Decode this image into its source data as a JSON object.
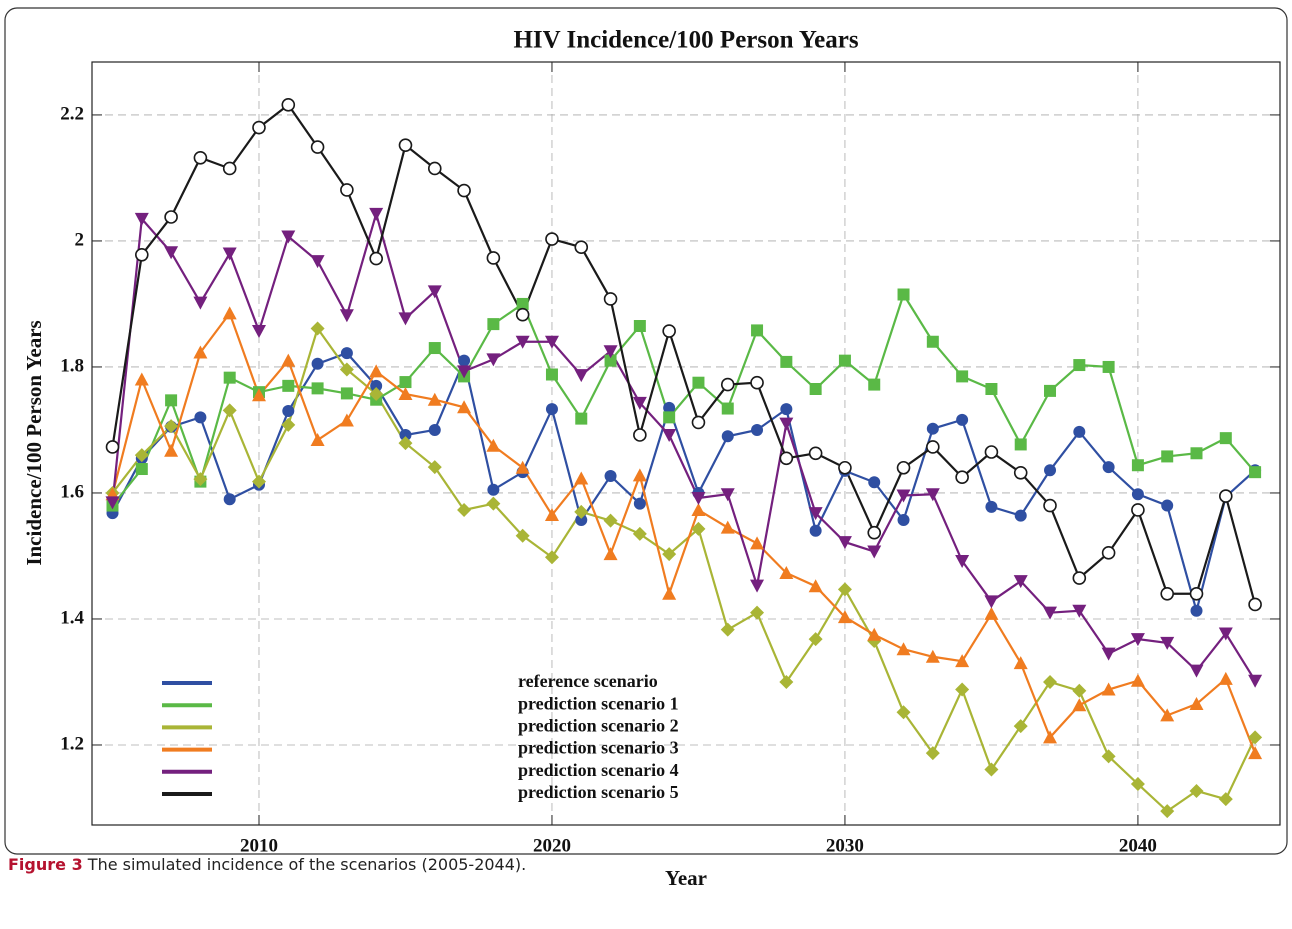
{
  "chart_data": {
    "type": "line",
    "title": "HIV Incidence/100 Person Years",
    "xlabel": "Year",
    "ylabel": "Incidence/100 Person Years",
    "x": [
      2005,
      2006,
      2007,
      2008,
      2009,
      2010,
      2011,
      2012,
      2013,
      2014,
      2015,
      2016,
      2017,
      2018,
      2019,
      2020,
      2021,
      2022,
      2023,
      2024,
      2025,
      2026,
      2027,
      2028,
      2029,
      2030,
      2031,
      2032,
      2033,
      2034,
      2035,
      2036,
      2037,
      2038,
      2039,
      2040,
      2041,
      2042,
      2043,
      2044
    ],
    "xlim": [
      2004.3,
      2044.85
    ],
    "xticks": [
      2010,
      2020,
      2030,
      2040
    ],
    "ylim": [
      1.073,
      2.284
    ],
    "yticks": [
      1.2,
      1.4,
      1.6,
      1.8,
      2.0,
      2.2
    ],
    "grid": true,
    "legend": "lower-left",
    "series": [
      {
        "name": "reference scenario",
        "color": "#2f4fa2",
        "marker": "circle",
        "values": [
          1.568,
          1.655,
          1.705,
          1.72,
          1.59,
          1.613,
          1.73,
          1.805,
          1.822,
          1.77,
          1.692,
          1.7,
          1.81,
          1.605,
          1.633,
          1.733,
          1.557,
          1.627,
          1.583,
          1.735,
          1.6,
          1.69,
          1.7,
          1.733,
          1.54,
          1.635,
          1.617,
          1.557,
          1.702,
          1.716,
          1.578,
          1.564,
          1.636,
          1.697,
          1.641,
          1.598,
          1.58,
          1.413,
          1.594,
          1.636
        ]
      },
      {
        "name": "prediction scenario 1",
        "color": "#5ab946",
        "marker": "square",
        "values": [
          1.58,
          1.638,
          1.747,
          1.618,
          1.783,
          1.76,
          1.77,
          1.766,
          1.758,
          1.748,
          1.776,
          1.83,
          1.785,
          1.868,
          1.9,
          1.788,
          1.718,
          1.81,
          1.865,
          1.72,
          1.775,
          1.734,
          1.858,
          1.808,
          1.765,
          1.81,
          1.772,
          1.915,
          1.84,
          1.785,
          1.765,
          1.677,
          1.762,
          1.803,
          1.8,
          1.644,
          1.658,
          1.663,
          1.687,
          1.633
        ]
      },
      {
        "name": "prediction scenario 2",
        "color": "#a9b536",
        "marker": "diamond",
        "values": [
          1.6,
          1.66,
          1.706,
          1.622,
          1.731,
          1.618,
          1.708,
          1.861,
          1.796,
          1.757,
          1.679,
          1.641,
          1.573,
          1.583,
          1.532,
          1.498,
          1.57,
          1.556,
          1.535,
          1.503,
          1.543,
          1.383,
          1.41,
          1.3,
          1.368,
          1.447,
          1.365,
          1.252,
          1.187,
          1.288,
          1.161,
          1.23,
          1.3,
          1.286,
          1.182,
          1.138,
          1.095,
          1.127,
          1.114,
          1.212
        ]
      },
      {
        "name": "prediction scenario 3",
        "color": "#f07c20",
        "marker": "triangle-up",
        "values": [
          1.598,
          1.78,
          1.667,
          1.823,
          1.885,
          1.755,
          1.81,
          1.684,
          1.715,
          1.793,
          1.757,
          1.748,
          1.736,
          1.675,
          1.64,
          1.565,
          1.623,
          1.503,
          1.628,
          1.44,
          1.573,
          1.545,
          1.52,
          1.473,
          1.452,
          1.403,
          1.375,
          1.352,
          1.34,
          1.333,
          1.408,
          1.33,
          1.212,
          1.263,
          1.288,
          1.302,
          1.247,
          1.265,
          1.305,
          1.187
        ]
      },
      {
        "name": "prediction scenario 4",
        "color": "#74207e",
        "marker": "triangle-down",
        "values": [
          1.585,
          2.035,
          1.982,
          1.902,
          1.98,
          1.857,
          2.007,
          1.968,
          1.882,
          2.043,
          1.877,
          1.92,
          1.793,
          1.812,
          1.84,
          1.84,
          1.787,
          1.825,
          1.743,
          1.692,
          1.592,
          1.598,
          1.453,
          1.71,
          1.568,
          1.522,
          1.507,
          1.596,
          1.598,
          1.492,
          1.428,
          1.46,
          1.41,
          1.413,
          1.345,
          1.368,
          1.362,
          1.318,
          1.377,
          1.302
        ]
      },
      {
        "name": "prediction scenario 5",
        "color": "#1a1a1a",
        "marker": "open-circle",
        "values": [
          1.673,
          1.978,
          2.038,
          2.132,
          2.115,
          2.18,
          2.216,
          2.149,
          2.081,
          1.972,
          2.152,
          2.115,
          2.08,
          1.973,
          1.883,
          2.003,
          1.99,
          1.908,
          1.692,
          1.857,
          1.712,
          1.772,
          1.775,
          1.655,
          1.663,
          1.64,
          1.537,
          1.64,
          1.673,
          1.625,
          1.665,
          1.632,
          1.58,
          1.465,
          1.505,
          1.573,
          1.44,
          1.44,
          1.595,
          1.423
        ]
      }
    ]
  },
  "caption": {
    "label": "Figure 3",
    "text": "The simulated incidence of the scenarios (2005-2044)."
  }
}
